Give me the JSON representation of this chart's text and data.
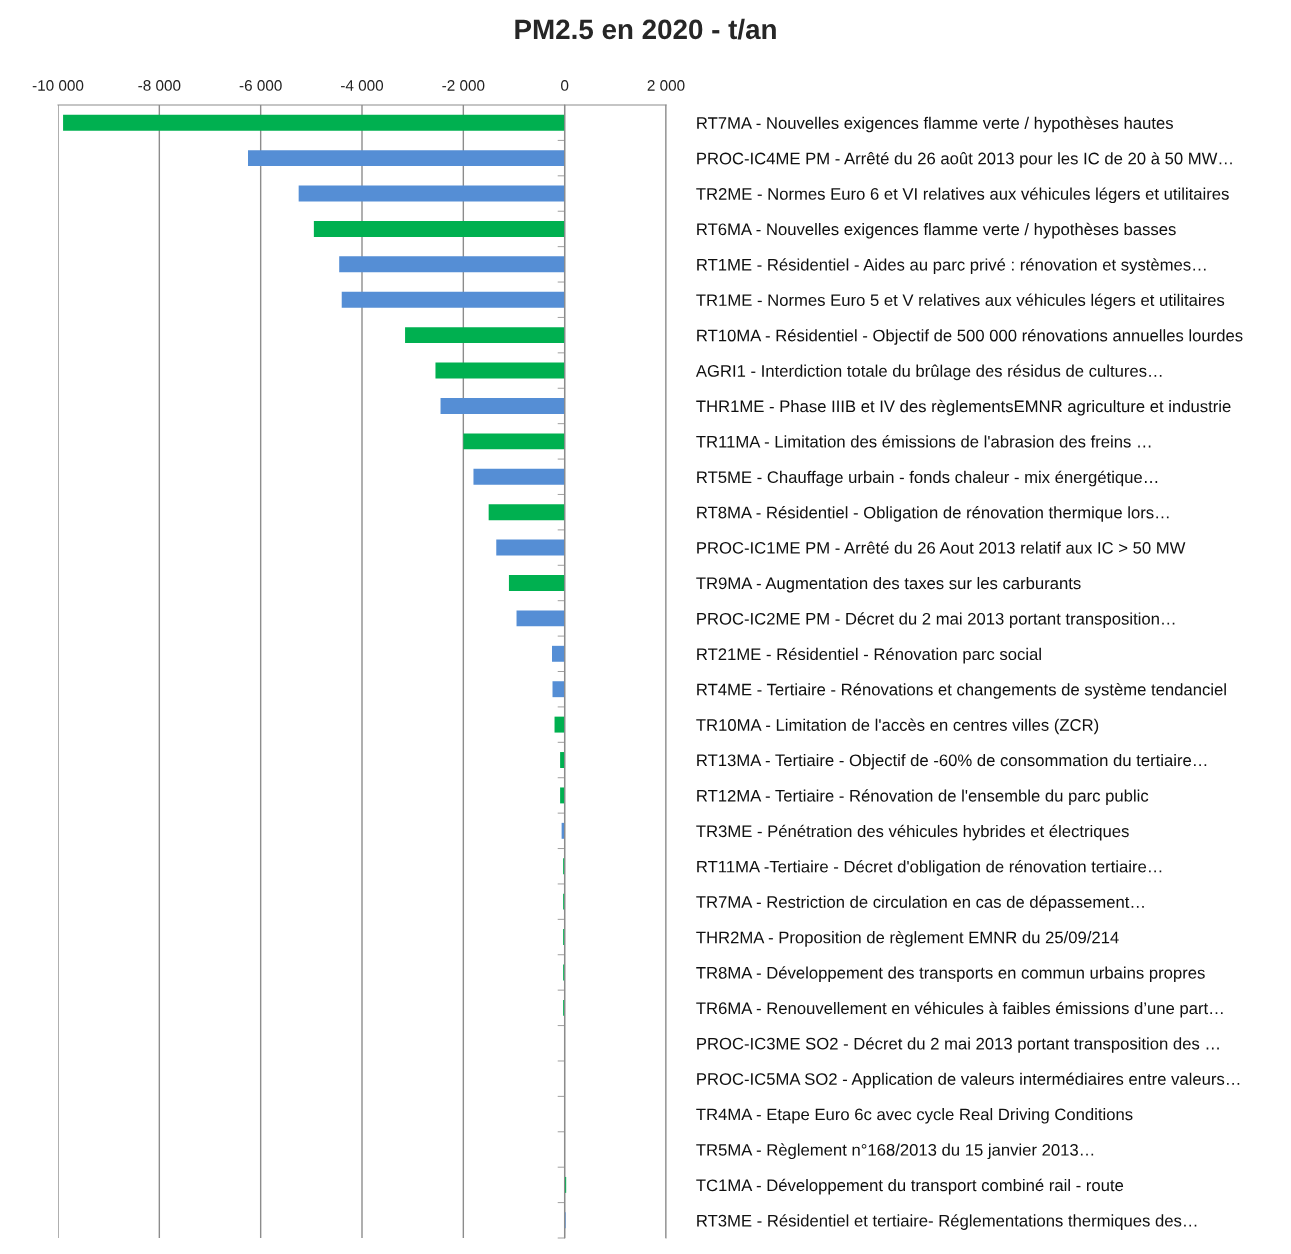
{
  "chart_data": {
    "type": "bar",
    "orientation": "horizontal",
    "title": "PM2.5 en 2020 - t/an",
    "categories": [
      "RT7MA - Nouvelles exigences flamme verte / hypothèses hautes",
      "PROC-IC4ME PM - Arrêté du 26 août 2013 pour les IC de 20 à 50 MW…",
      "TR2ME - Normes Euro 6 et VI relatives aux véhicules légers et utilitaires",
      "RT6MA - Nouvelles exigences flamme verte / hypothèses basses",
      "RT1ME - Résidentiel - Aides au parc privé : rénovation et systèmes…",
      "TR1ME - Normes Euro 5 et V relatives aux véhicules légers et utilitaires",
      "RT10MA - Résidentiel - Objectif de 500 000 rénovations annuelles lourdes",
      "AGRI1 - Interdiction totale du brûlage des résidus de cultures…",
      "THR1ME - Phase IIIB et IV des règlementsEMNR agriculture et industrie",
      "TR11MA - Limitation des émissions de l'abrasion des freins …",
      "RT5ME - Chauffage urbain - fonds chaleur - mix énergétique…",
      "RT8MA - Résidentiel - Obligation de rénovation thermique lors…",
      "PROC-IC1ME PM - Arrêté du 26 Aout 2013 relatif aux IC > 50 MW",
      "TR9MA - Augmentation des taxes sur les carburants",
      "PROC-IC2ME PM - Décret du 2 mai 2013 portant transposition…",
      "RT21ME - Résidentiel - Rénovation parc social",
      "RT4ME - Tertiaire - Rénovations et changements de système tendanciel",
      "TR10MA - Limitation de l'accès en centres villes (ZCR)",
      "RT13MA - Tertiaire - Objectif de -60% de consommation du tertiaire…",
      "RT12MA - Tertiaire - Rénovation de l'ensemble du parc public",
      "TR3ME - Pénétration des véhicules hybrides et électriques",
      "RT11MA -Tertiaire - Décret d'obligation de rénovation tertiaire…",
      "TR7MA - Restriction de circulation en cas de dépassement…",
      "THR2MA - Proposition de règlement EMNR du 25/09/214",
      "TR8MA - Développement des transports en commun urbains propres",
      "TR6MA - Renouvellement en véhicules à faibles émissions d’une part…",
      "PROC-IC3ME SO2 - Décret du 2 mai 2013 portant transposition des …",
      "PROC-IC5MA SO2 - Application de valeurs intermédiaires entre valeurs…",
      "TR4MA - Etape Euro 6c avec cycle Real Driving Conditions",
      "TR5MA - Règlement n°168/2013 du 15 janvier 2013…",
      "TC1MA - Développement du transport combiné rail - route",
      "RT3ME - Résidentiel et tertiaire- Réglementations thermiques des…"
    ],
    "values": [
      -9900,
      -6250,
      -5250,
      -4950,
      -4450,
      -4400,
      -3150,
      -2550,
      -2450,
      -2000,
      -1800,
      -1500,
      -1350,
      -1100,
      -950,
      -250,
      -240,
      -200,
      -90,
      -90,
      -60,
      -30,
      -30,
      -30,
      -30,
      -30,
      0,
      0,
      0,
      0,
      30,
      20
    ],
    "colors": [
      "#00b050",
      "#558ed5",
      "#558ed5",
      "#00b050",
      "#558ed5",
      "#558ed5",
      "#00b050",
      "#00b050",
      "#558ed5",
      "#00b050",
      "#558ed5",
      "#00b050",
      "#558ed5",
      "#00b050",
      "#558ed5",
      "#558ed5",
      "#558ed5",
      "#00b050",
      "#00b050",
      "#00b050",
      "#558ed5",
      "#00b050",
      "#00b050",
      "#00b050",
      "#00b050",
      "#00b050",
      "#558ed5",
      "#00b050",
      "#00b050",
      "#00b050",
      "#00b050",
      "#558ed5"
    ],
    "xlim": [
      -10000,
      2000
    ],
    "xticks": [
      {
        "value": -10000,
        "label": "-10 000"
      },
      {
        "value": -8000,
        "label": "-8 000"
      },
      {
        "value": -6000,
        "label": "-6 000"
      },
      {
        "value": -4000,
        "label": "-4 000"
      },
      {
        "value": -2000,
        "label": "-2 000"
      },
      0,
      {
        "value": 2000,
        "label": "2 000"
      }
    ],
    "grid": "x"
  }
}
